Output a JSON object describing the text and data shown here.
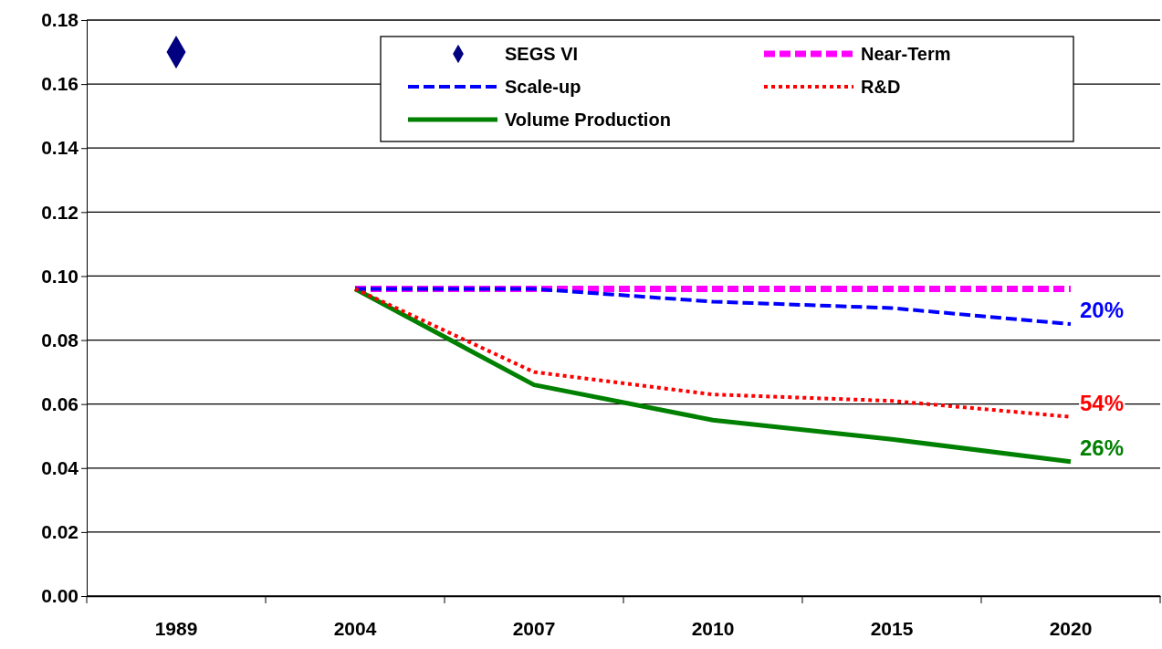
{
  "chart_data": {
    "type": "line",
    "categories": [
      "1989",
      "2004",
      "2007",
      "2010",
      "2015",
      "2020"
    ],
    "ylim": [
      0,
      0.18
    ],
    "yticks": [
      {
        "value": 0,
        "label": "0.00"
      },
      {
        "value": 0.02,
        "label": "0.02"
      },
      {
        "value": 0.04,
        "label": "0.04"
      },
      {
        "value": 0.06,
        "label": "0.06"
      },
      {
        "value": 0.08,
        "label": "0.08"
      },
      {
        "value": 0.1,
        "label": "0.10"
      },
      {
        "value": 0.12,
        "label": "0.12"
      },
      {
        "value": 0.14,
        "label": "0.14"
      },
      {
        "value": 0.16,
        "label": "0.16"
      },
      {
        "value": 0.18,
        "label": "0.18"
      }
    ],
    "grid": "y",
    "legend": "top",
    "series": [
      {
        "name": "SEGS VI",
        "type": "scatter",
        "marker": "diamond",
        "color": "#000080",
        "values": [
          0.17,
          null,
          null,
          null,
          null,
          null
        ]
      },
      {
        "name": "Near-Term",
        "color": "#ff00ff",
        "line_style": "dashed",
        "values": [
          null,
          0.096,
          0.096,
          0.096,
          0.096,
          0.096
        ]
      },
      {
        "name": "Scale-up",
        "color": "#0000ff",
        "line_style": "dashed",
        "values": [
          null,
          0.096,
          0.096,
          0.092,
          0.09,
          0.085
        ]
      },
      {
        "name": "R&D",
        "color": "#ff0000",
        "line_style": "dotted",
        "values": [
          null,
          0.096,
          0.07,
          0.063,
          0.061,
          0.056
        ]
      },
      {
        "name": "Volume Production",
        "color": "#008000",
        "line_style": "solid",
        "values": [
          null,
          0.096,
          0.066,
          0.055,
          0.049,
          0.042
        ]
      }
    ],
    "annotations": [
      {
        "text": "20%",
        "x": "2020",
        "y": 0.085
      },
      {
        "text": "54%",
        "x": "2020",
        "y": 0.056
      },
      {
        "text": "26%",
        "x": "2020",
        "y": 0.042
      }
    ]
  }
}
